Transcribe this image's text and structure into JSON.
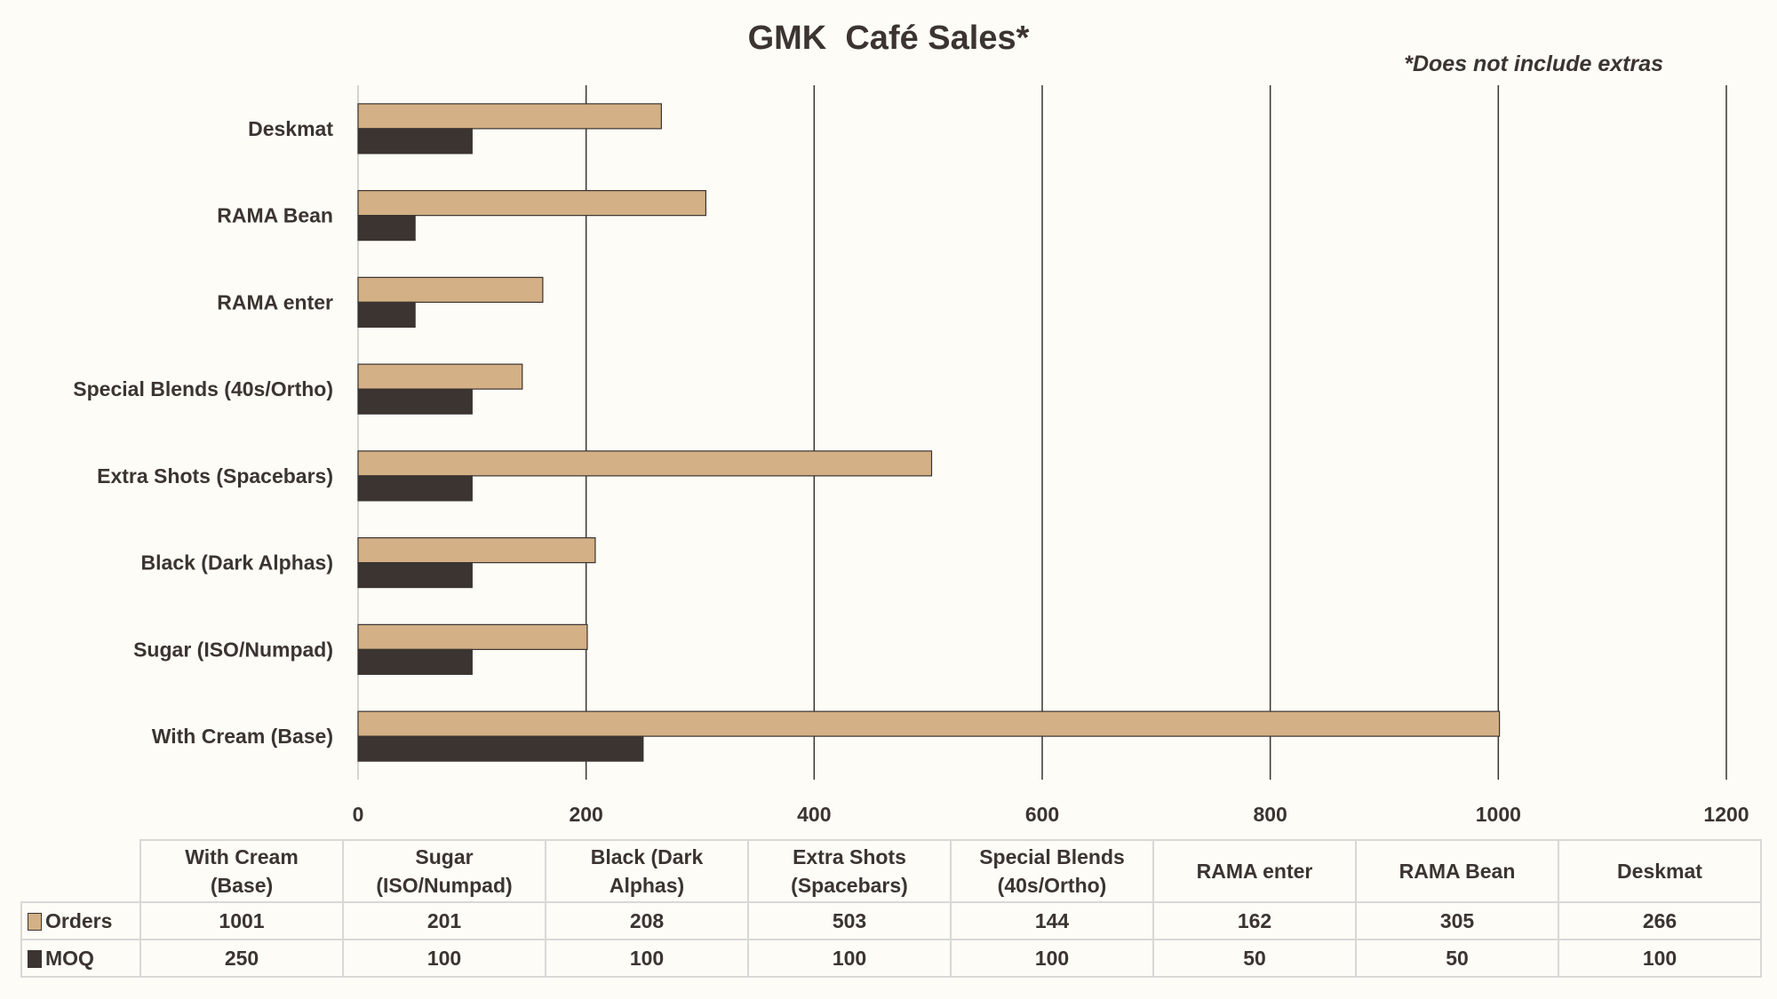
{
  "chart_data": {
    "type": "bar",
    "orientation": "horizontal",
    "title": "GMK  Café Sales*",
    "annotation": "*Does not include extras",
    "categories": [
      "With Cream (Base)",
      "Sugar (ISO/Numpad)",
      "Black (Dark Alphas)",
      "Extra Shots (Spacebars)",
      "Special Blends (40s/Ortho)",
      "RAMA enter",
      "RAMA Bean",
      "Deskmat"
    ],
    "table_headers": [
      [
        "With Cream",
        "(Base)"
      ],
      [
        "Sugar",
        "(ISO/Numpad)"
      ],
      [
        "Black (Dark",
        "Alphas)"
      ],
      [
        "Extra Shots",
        "(Spacebars)"
      ],
      [
        "Special Blends",
        "(40s/Ortho)"
      ],
      [
        "RAMA enter",
        ""
      ],
      [
        "RAMA Bean",
        ""
      ],
      [
        "Deskmat",
        ""
      ]
    ],
    "series": [
      {
        "name": "Orders",
        "color": "#d3b085",
        "values": [
          1001,
          201,
          208,
          503,
          144,
          162,
          305,
          266
        ]
      },
      {
        "name": "MOQ",
        "color": "#3b3431",
        "values": [
          250,
          100,
          100,
          100,
          100,
          50,
          50,
          100
        ]
      }
    ],
    "xlim": [
      0,
      1200
    ],
    "xticks": [
      0,
      200,
      400,
      600,
      800,
      1000,
      1200
    ],
    "grid": "vertical major",
    "legend": "data table below chart"
  }
}
